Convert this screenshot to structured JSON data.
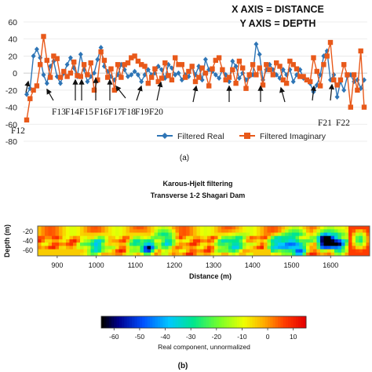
{
  "chart_data": [
    {
      "type": "line",
      "note_labels": [
        "X AXIS = DISTANCE",
        "Y AXIS = DEPTH"
      ],
      "ylim": [
        -80,
        60
      ],
      "yticks": [
        60,
        40,
        20,
        0,
        -20,
        -40,
        -60,
        -80
      ],
      "legend": "bottom-right",
      "panel_label": "(a)",
      "series": [
        {
          "name": "Filtered Real",
          "color": "#2e75b6",
          "marker": "diamond",
          "values": [
            -25,
            -18,
            20,
            28,
            18,
            -2,
            -12,
            8,
            14,
            -4,
            -12,
            0,
            10,
            18,
            6,
            -4,
            22,
            4,
            -10,
            -4,
            0,
            16,
            30,
            8,
            2,
            -4,
            -8,
            -2,
            10,
            4,
            -4,
            -2,
            2,
            -2,
            -10,
            -2,
            4,
            -2,
            0,
            8,
            4,
            -6,
            10,
            6,
            -2,
            0,
            -8,
            -2,
            -4,
            8,
            -2,
            8,
            -8,
            16,
            4,
            2,
            -2,
            -6,
            4,
            -2,
            -10,
            14,
            8,
            -6,
            0,
            -8,
            -4,
            -2,
            34,
            22,
            -8,
            4,
            10,
            4,
            -2,
            -6,
            4,
            -2,
            4,
            -10,
            -2,
            4,
            -6,
            -8,
            -12,
            -22,
            -14,
            -2,
            20,
            26,
            -8,
            -2,
            -28,
            -10,
            -20,
            -4,
            -2,
            -10,
            -8,
            -18,
            -8
          ]
        },
        {
          "name": "Filtered Imaginary",
          "color": "#e8591a",
          "marker": "square",
          "values": [
            -55,
            -30,
            -20,
            -15,
            10,
            43,
            15,
            -5,
            20,
            17,
            -5,
            2,
            -4,
            0,
            13,
            -3,
            -4,
            10,
            -2,
            12,
            -20,
            -8,
            25,
            15,
            -5,
            5,
            -20,
            10,
            -5,
            10,
            12,
            18,
            20,
            14,
            10,
            8,
            -12,
            -5,
            5,
            -10,
            -6,
            12,
            -3,
            -8,
            18,
            10,
            10,
            -5,
            2,
            8,
            -10,
            -5,
            6,
            0,
            -15,
            5,
            15,
            18,
            4,
            -8,
            -5,
            4,
            -12,
            14,
            6,
            -18,
            -2,
            10,
            -2,
            6,
            -14,
            10,
            4,
            -2,
            12,
            8,
            -8,
            -12,
            14,
            10,
            5,
            -4,
            -4,
            -8,
            -10,
            18,
            2,
            -15,
            10,
            20,
            36,
            -8,
            -14,
            -8,
            10,
            -2,
            -40,
            -2,
            -20,
            26,
            -40
          ]
        }
      ],
      "annotations": [
        "F12",
        "F13",
        "F14",
        "F15",
        "F16",
        "F17",
        "F18",
        "F19",
        "F20",
        "F21",
        "F22"
      ]
    },
    {
      "type": "heatmap",
      "title": "Karous-Hjelt filtering",
      "subtitle": "Transverse 1-2 Shagari Dam",
      "xlabel": "Distance (m)",
      "ylabel": "Depth (m)",
      "xlim": [
        850,
        1700
      ],
      "xticks": [
        900,
        1000,
        1100,
        1200,
        1300,
        1400,
        1500,
        1600
      ],
      "yticks": [
        -20,
        -40,
        -60
      ],
      "colorbar": {
        "label": "Real component, unnormalized",
        "ticks": [
          -60,
          -50,
          -40,
          -30,
          -20,
          -10,
          0,
          10
        ],
        "range": [
          -65,
          15
        ]
      },
      "panel_label": "(b)"
    }
  ]
}
